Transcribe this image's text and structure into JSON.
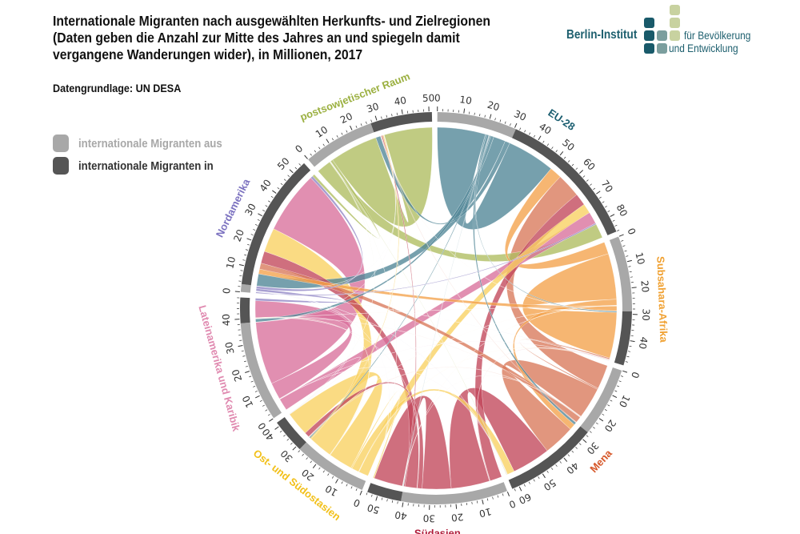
{
  "title": "Internationale Migranten nach ausgewählten Herkunfts- und Zielregionen (Daten geben die Anzahl zur Mitte des Jahres an und spiegeln damit vergangene Wanderungen wider), in Millionen, 2017",
  "source": "Datengrundlage: UN DESA",
  "legend": [
    {
      "label": "internationale Migranten aus",
      "color": "#a8a8a8"
    },
    {
      "label": "internationale Migranten in",
      "color": "#555555"
    }
  ],
  "logo": {
    "name": "Berlin-Institut",
    "line1": "für Bevölkerung",
    "line2": "und Entwicklung"
  },
  "chart_data": {
    "type": "chord",
    "unit": "Millionen",
    "tick_step": 10,
    "regions": [
      {
        "name": "EU-28",
        "color": "#4f8596",
        "label_color": "#1b5e70"
      },
      {
        "name": "Subsahara-Afrika",
        "color": "#f3a24a",
        "label_color": "#f0a030"
      },
      {
        "name": "Mena",
        "color": "#d9795a",
        "label_color": "#d6582a"
      },
      {
        "name": "Südasien",
        "color": "#c2475a",
        "label_color": "#b01e3c"
      },
      {
        "name": "Ost- und Südostasien",
        "color": "#f9d160",
        "label_color": "#f2c01a"
      },
      {
        "name": "Lateinamerika und Karibik",
        "color": "#d86f9b",
        "label_color": "#e08ab0"
      },
      {
        "name": "Nordamerika",
        "color": "#8e84c4",
        "label_color": "#7c72c0"
      },
      {
        "name": "postsowjetischer Raum",
        "color": "#aebd5f",
        "label_color": "#9bb040"
      }
    ],
    "matrix_from_to": [
      [
        20,
        0.5,
        1,
        0.3,
        0.5,
        1.3,
        5,
        2
      ],
      [
        5,
        19,
        2.5,
        0.1,
        0.1,
        0.1,
        2,
        0.1
      ],
      [
        10,
        0.5,
        13,
        0.1,
        0.3,
        0.1,
        2.5,
        0.3
      ],
      [
        5,
        0.3,
        16,
        12,
        2,
        0.1,
        5,
        0.5
      ],
      [
        4,
        0.2,
        3,
        0.5,
        10,
        0.2,
        10,
        0.5
      ],
      [
        5,
        0.1,
        0.1,
        0,
        0.1,
        7,
        26,
        0.1
      ],
      [
        0.5,
        0.1,
        0.1,
        0.1,
        0.1,
        1,
        1,
        0.1
      ],
      [
        6,
        0,
        0.3,
        0.1,
        0.1,
        0,
        1,
        20
      ]
    ]
  }
}
